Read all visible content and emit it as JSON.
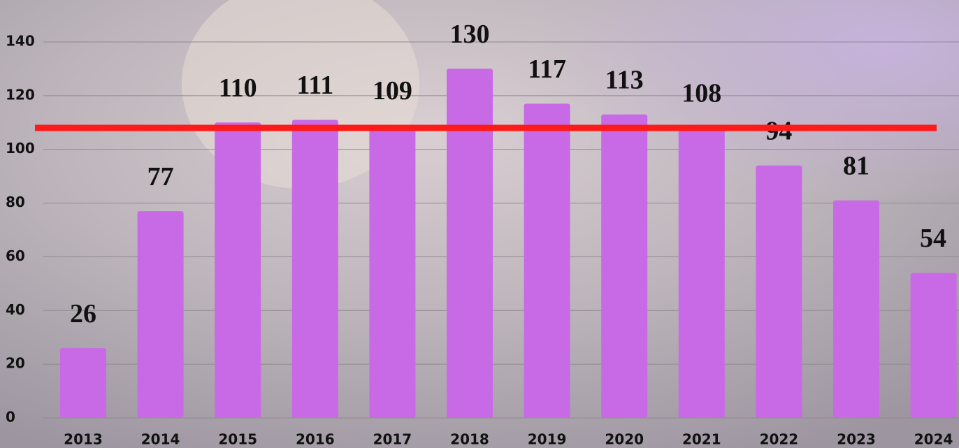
{
  "chart_data": {
    "type": "bar",
    "categories": [
      "2013",
      "2014",
      "2015",
      "2016",
      "2017",
      "2018",
      "2019",
      "2020",
      "2021",
      "2022",
      "2023",
      "2024"
    ],
    "values": [
      26,
      77,
      110,
      111,
      109,
      130,
      117,
      113,
      108,
      94,
      81,
      54
    ],
    "color": "#c86ae6",
    "ylim": [
      0,
      140
    ],
    "yticks": [
      0,
      20,
      40,
      60,
      80,
      100,
      120,
      140
    ],
    "grid": true,
    "reference_line": {
      "value": 108,
      "color": "#ff1a1a"
    }
  }
}
